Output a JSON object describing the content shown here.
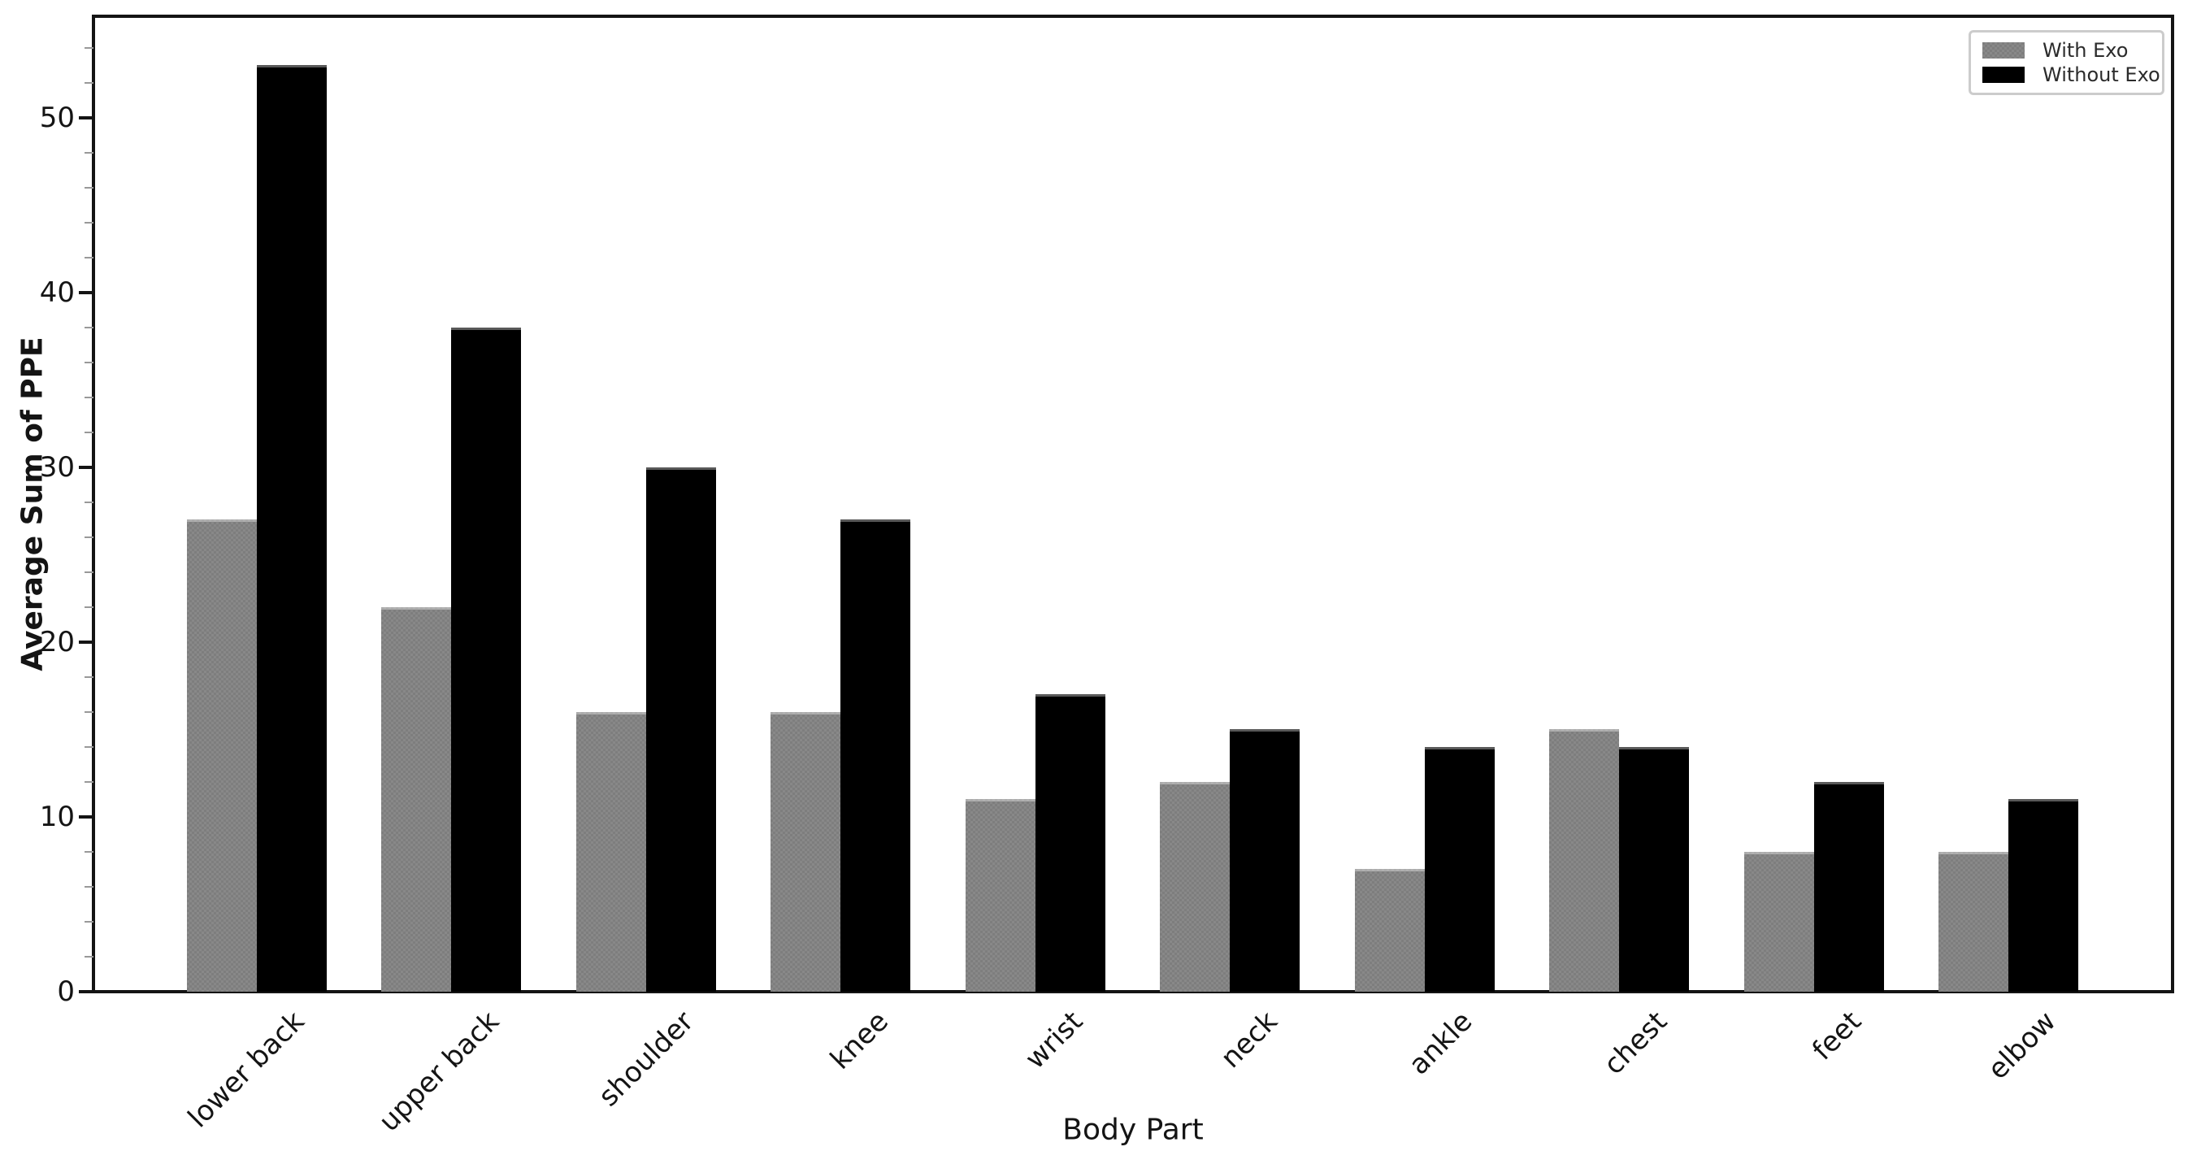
{
  "chart_data": {
    "type": "bar",
    "title": "",
    "xlabel": "Body Part",
    "ylabel": "Average Sum of PPE",
    "categories": [
      "lower back",
      "upper back",
      "shoulder",
      "knee",
      "wrist",
      "neck",
      "ankle",
      "chest",
      "feet",
      "elbow"
    ],
    "series": [
      {
        "name": "With Exo",
        "color": "#7e7e7e",
        "texture": "checker",
        "values": [
          27,
          22,
          16,
          16,
          11,
          12,
          7,
          15,
          8,
          8
        ]
      },
      {
        "name": "Without Exo",
        "color": "#000000",
        "texture": "solid",
        "values": [
          53,
          38,
          30,
          27,
          17,
          15,
          14,
          14,
          12,
          11
        ]
      }
    ],
    "yticks": [
      0,
      10,
      20,
      30,
      40,
      50
    ],
    "ylim": [
      0,
      55.8
    ],
    "minor_tick_step": 2,
    "grid": false,
    "legend_position": "upper right"
  }
}
